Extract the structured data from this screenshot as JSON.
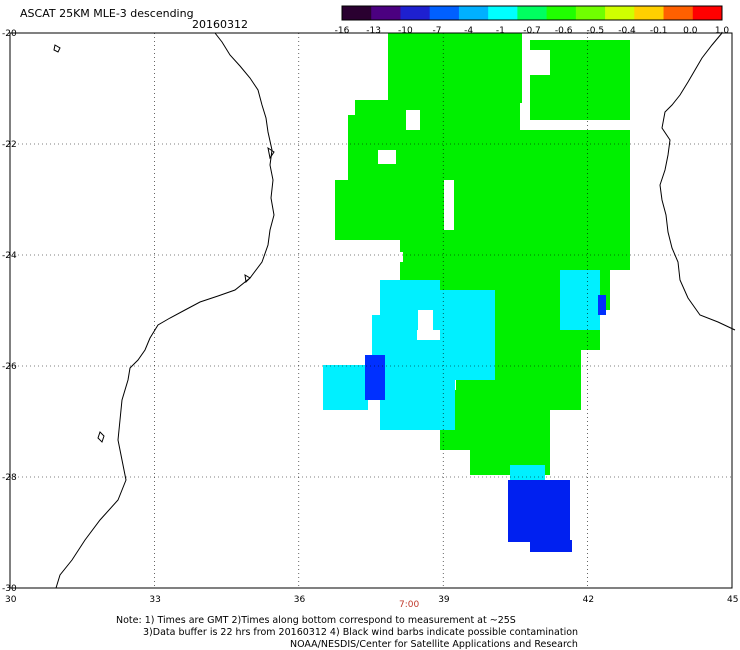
{
  "title": "ASCAT 25KM MLE-3 descending",
  "date": "20160312",
  "colorbar": {
    "labels": [
      "-16",
      "-13",
      "-10",
      "-7",
      "-4",
      "-1",
      "-0.7",
      "-0.6",
      "-0.5",
      "-0.4",
      "-0.1",
      "0.0",
      "1.0"
    ],
    "colors": [
      "#2a0030",
      "#4b0080",
      "#1e20d0",
      "#0060ff",
      "#00b0ff",
      "#00ffff",
      "#00ff60",
      "#20ff00",
      "#70ff00",
      "#d0ff00",
      "#ffd000",
      "#ff6000",
      "#ff0000"
    ]
  },
  "map": {
    "lat_labels": [
      "-20",
      "-22",
      "-24",
      "-26",
      "-28",
      "-30"
    ],
    "lon_labels": [
      "30",
      "33",
      "36",
      "39",
      "42",
      "45"
    ],
    "lat_range": [
      -30,
      -20
    ],
    "lon_range": [
      30,
      45
    ],
    "field_colors": {
      "green": "#00f000",
      "cyan": "#00f0ff",
      "blue": "#0030ff",
      "dark_blue": "#0020f0"
    }
  },
  "time_label": "7:00",
  "notes": [
    "Note: 1) Times are GMT 2)Times along bottom correspond to measurement at ~25S",
    "3)Data buffer is 22 hrs from 20160312 4) Black wind barbs indicate possible contamination",
    "NOAA/NESDIS/Center for Satellite Applications and Research"
  ]
}
